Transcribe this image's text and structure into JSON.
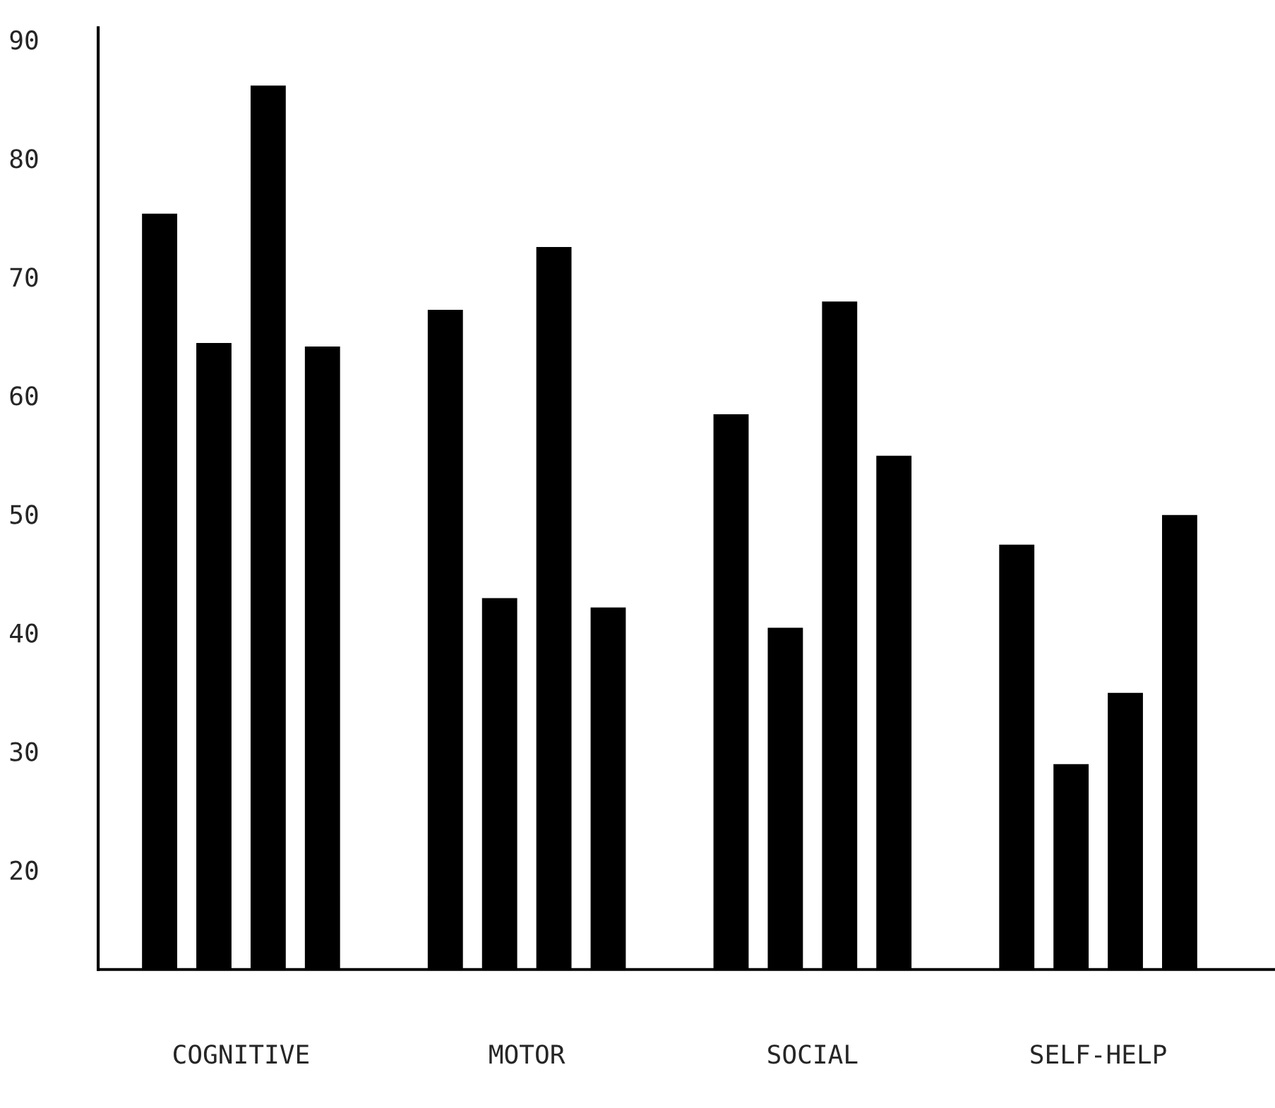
{
  "chart_data": {
    "type": "bar",
    "categories": [
      "COGNITIVE",
      "MOTOR",
      "SOCIAL",
      "SELF-HELP"
    ],
    "series": [
      {
        "color": "#000000",
        "values": [
          75.4,
          67.3,
          58.5,
          47.5
        ]
      },
      {
        "color": "#000000",
        "values": [
          64.5,
          43.0,
          40.5,
          29.0
        ]
      },
      {
        "color": "#000000",
        "values": [
          86.2,
          72.6,
          68.0,
          35.0
        ]
      },
      {
        "color": "#000000",
        "values": [
          64.2,
          42.2,
          55.0,
          50.0
        ]
      }
    ],
    "ylim": [
      11.6,
      91
    ],
    "yticks": [
      20,
      30,
      40,
      50,
      60,
      70,
      80,
      90
    ]
  }
}
